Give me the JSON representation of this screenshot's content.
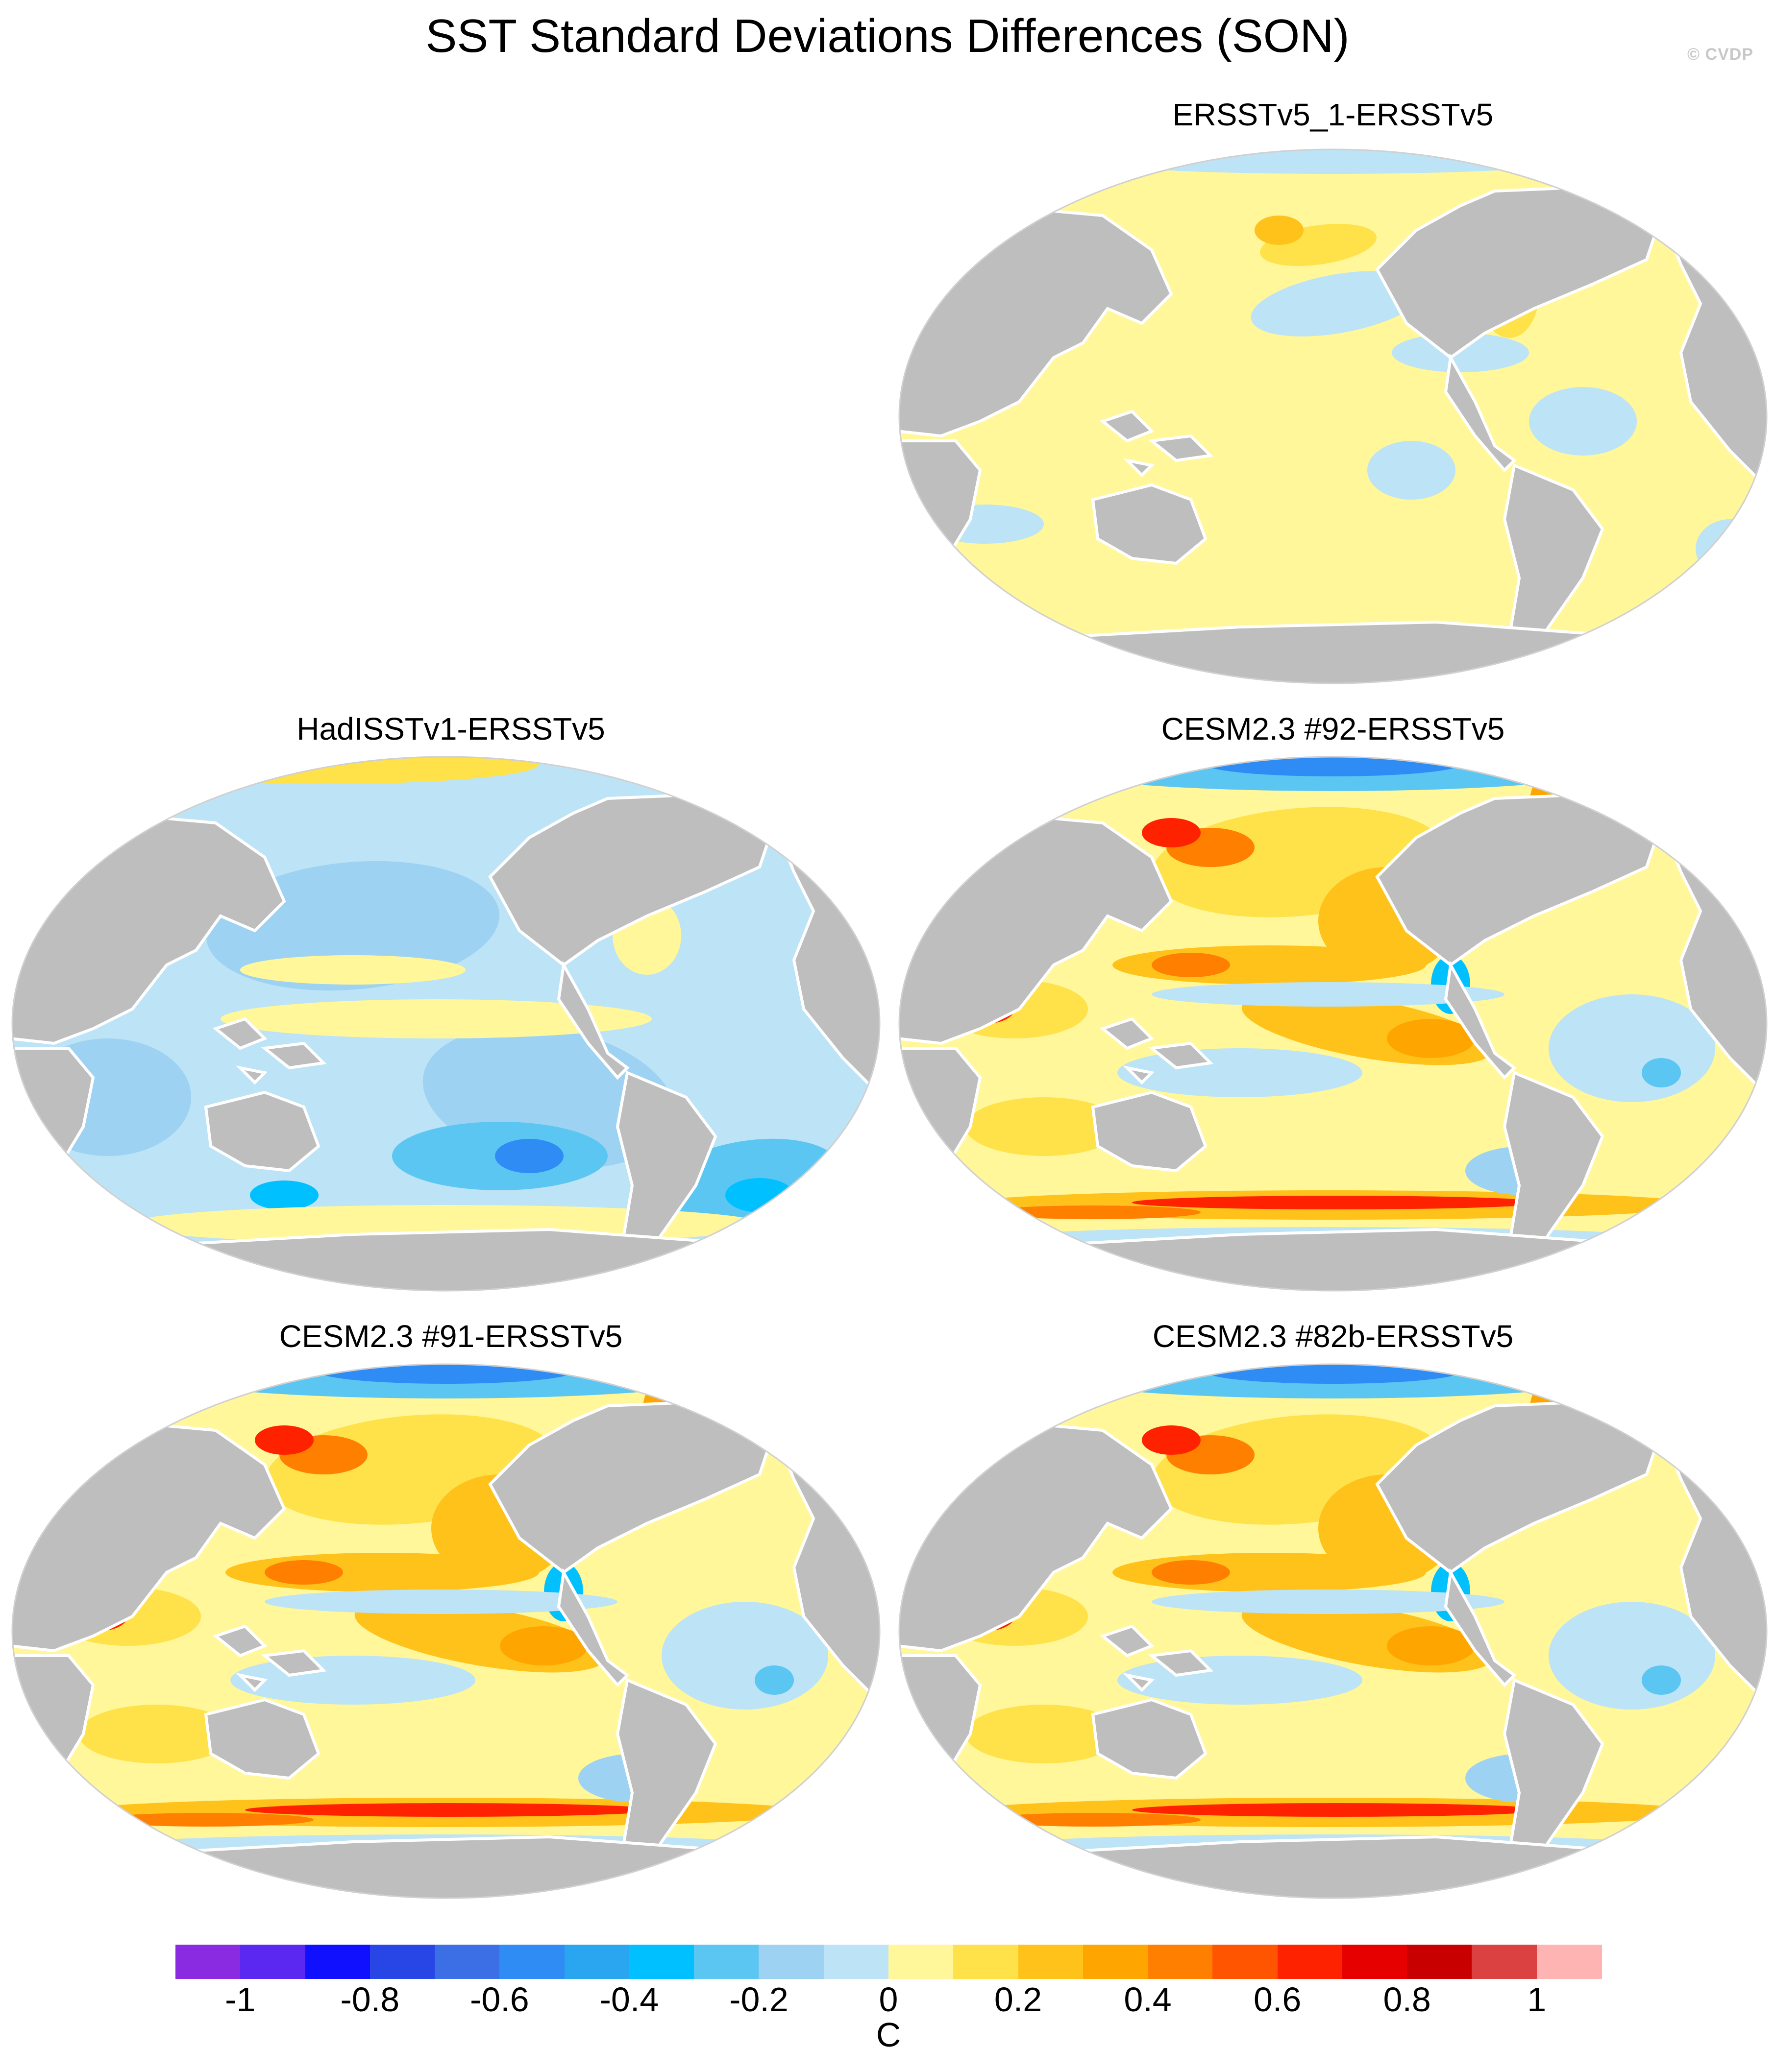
{
  "title": "SST Standard Deviations Differences (SON)",
  "watermark": "© CVDP",
  "panels": [
    {
      "label": "ERSSTv5_1-ERSSTv5",
      "pattern": "weak"
    },
    {
      "label": "HadISSTv1-ERSSTv5",
      "pattern": "negative"
    },
    {
      "label": "CESM2.3 #92-ERSSTv5",
      "pattern": "model"
    },
    {
      "label": "CESM2.3 #91-ERSSTv5",
      "pattern": "model"
    },
    {
      "label": "CESM2.3 #82b-ERSSTv5",
      "pattern": "model"
    }
  ],
  "colorbar": {
    "unit": "C",
    "ticks": [
      "-1",
      "-0.8",
      "-0.6",
      "-0.4",
      "-0.2",
      "0",
      "0.2",
      "0.4",
      "0.6",
      "0.8",
      "1"
    ],
    "colors": [
      "#8a2be2",
      "#5a28f0",
      "#1010ff",
      "#2846e6",
      "#3c6ee6",
      "#2f8cf5",
      "#2aa6f0",
      "#00c0ff",
      "#5cc6f2",
      "#9dd2f2",
      "#bde3f6",
      "#fff79a",
      "#ffe14a",
      "#ffc21a",
      "#ffa500",
      "#ff7f00",
      "#ff5500",
      "#ff2200",
      "#e60000",
      "#c80000",
      "#dc4141",
      "#ffb4b4"
    ]
  },
  "colors": {
    "land": "#bebebe",
    "ocean_base": "#fff79a",
    "coast": "#ffffff"
  }
}
